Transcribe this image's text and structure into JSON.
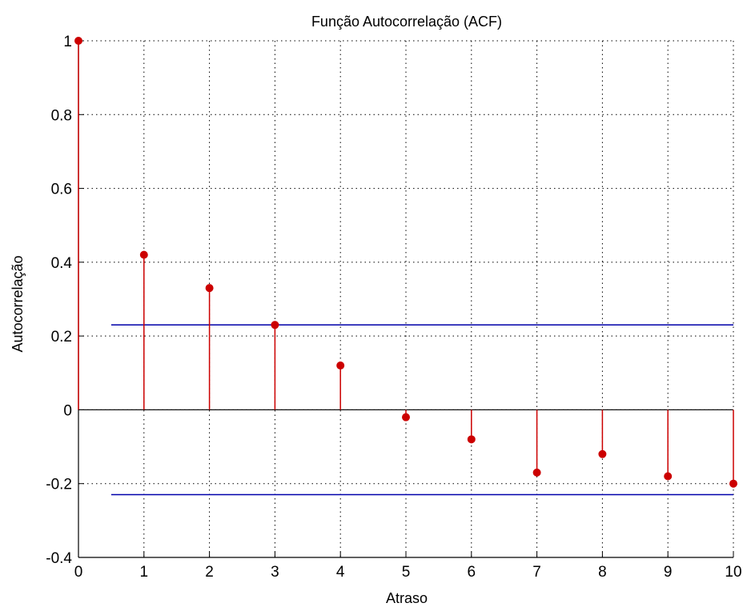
{
  "chart_data": {
    "type": "stem",
    "title": "Função Autocorrelação (ACF)",
    "xlabel": "Atraso",
    "ylabel": "Autocorrelação",
    "xlim": [
      0,
      10
    ],
    "ylim": [
      -0.4,
      1
    ],
    "xticks": [
      "0",
      "1",
      "2",
      "3",
      "4",
      "5",
      "6",
      "7",
      "8",
      "9",
      "10"
    ],
    "yticks": [
      "-0.4",
      "-0.2",
      "0",
      "0.2",
      "0.4",
      "0.6",
      "0.8",
      "1"
    ],
    "grid": true,
    "series": [
      {
        "x": [
          0,
          1,
          2,
          3,
          4,
          5,
          6,
          7,
          8,
          9,
          10
        ],
        "values": [
          1.0,
          0.42,
          0.33,
          0.23,
          0.12,
          -0.02,
          -0.08,
          -0.17,
          -0.12,
          -0.18,
          -0.2
        ],
        "color": "#cc0000"
      }
    ],
    "confidence_bounds": {
      "upper": 0.23,
      "lower": -0.23,
      "x_start": 0.5,
      "x_end": 10,
      "color": "#0000aa"
    },
    "colors": {
      "stem": "#cc0000",
      "bounds": "#0000aa",
      "zero_line": "#000000",
      "grid": "#000000"
    }
  }
}
